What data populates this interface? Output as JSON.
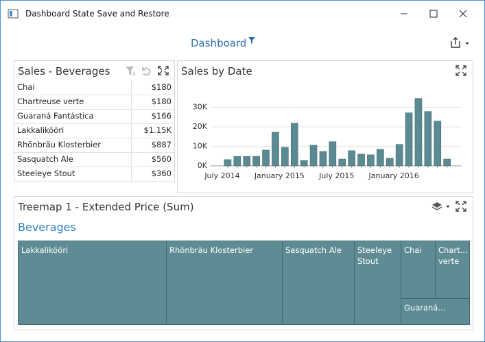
{
  "window": {
    "title": "Dashboard State Save and Restore"
  },
  "dashboard": {
    "title": "Dashboard"
  },
  "grid": {
    "title": "Sales - Beverages",
    "rows": [
      [
        "Chai",
        "$180"
      ],
      [
        "Chartreuse verte",
        "$180"
      ],
      [
        "Guaraná Fantástica",
        "$166"
      ],
      [
        "Lakkalikööri",
        "$1.15K"
      ],
      [
        "Rhönbräu Klosterbier",
        "$887"
      ],
      [
        "Sasquatch Ale",
        "$560"
      ],
      [
        "Steeleye Stout",
        "$360"
      ]
    ]
  },
  "chart_data": {
    "type": "bar",
    "title": "Sales by Date",
    "categories": [
      "July 2014",
      null,
      null,
      null,
      null,
      null,
      "January 2015",
      null,
      null,
      null,
      null,
      null,
      "July 2015",
      null,
      null,
      null,
      null,
      null,
      "January 2016",
      null,
      null,
      null,
      null,
      null
    ],
    "values": [
      3200,
      4900,
      4900,
      4900,
      8100,
      17300,
      9500,
      21900,
      2800,
      10600,
      7400,
      12400,
      3500,
      7800,
      6000,
      5700,
      8500,
      3900,
      11000,
      27200,
      34600,
      27900,
      23000,
      3500
    ],
    "color": "#5b8a92",
    "ylim": [
      0,
      38000
    ],
    "yticks": [
      {
        "value": 0,
        "label": "0K"
      },
      {
        "value": 10000,
        "label": "10K"
      },
      {
        "value": 20000,
        "label": "20K"
      },
      {
        "value": 30000,
        "label": "30K"
      }
    ],
    "grid": true
  },
  "treemap": {
    "title": "Treemap 1 - Extended Price (Sum)",
    "group": "Beverages",
    "tiles": [
      "Lakkalikööri",
      "Rhönbräu Klosterbier",
      "Sasquatch Ale",
      "Steeleye Stout",
      "Chai",
      "Chart... verte",
      "Guaraná..."
    ]
  }
}
